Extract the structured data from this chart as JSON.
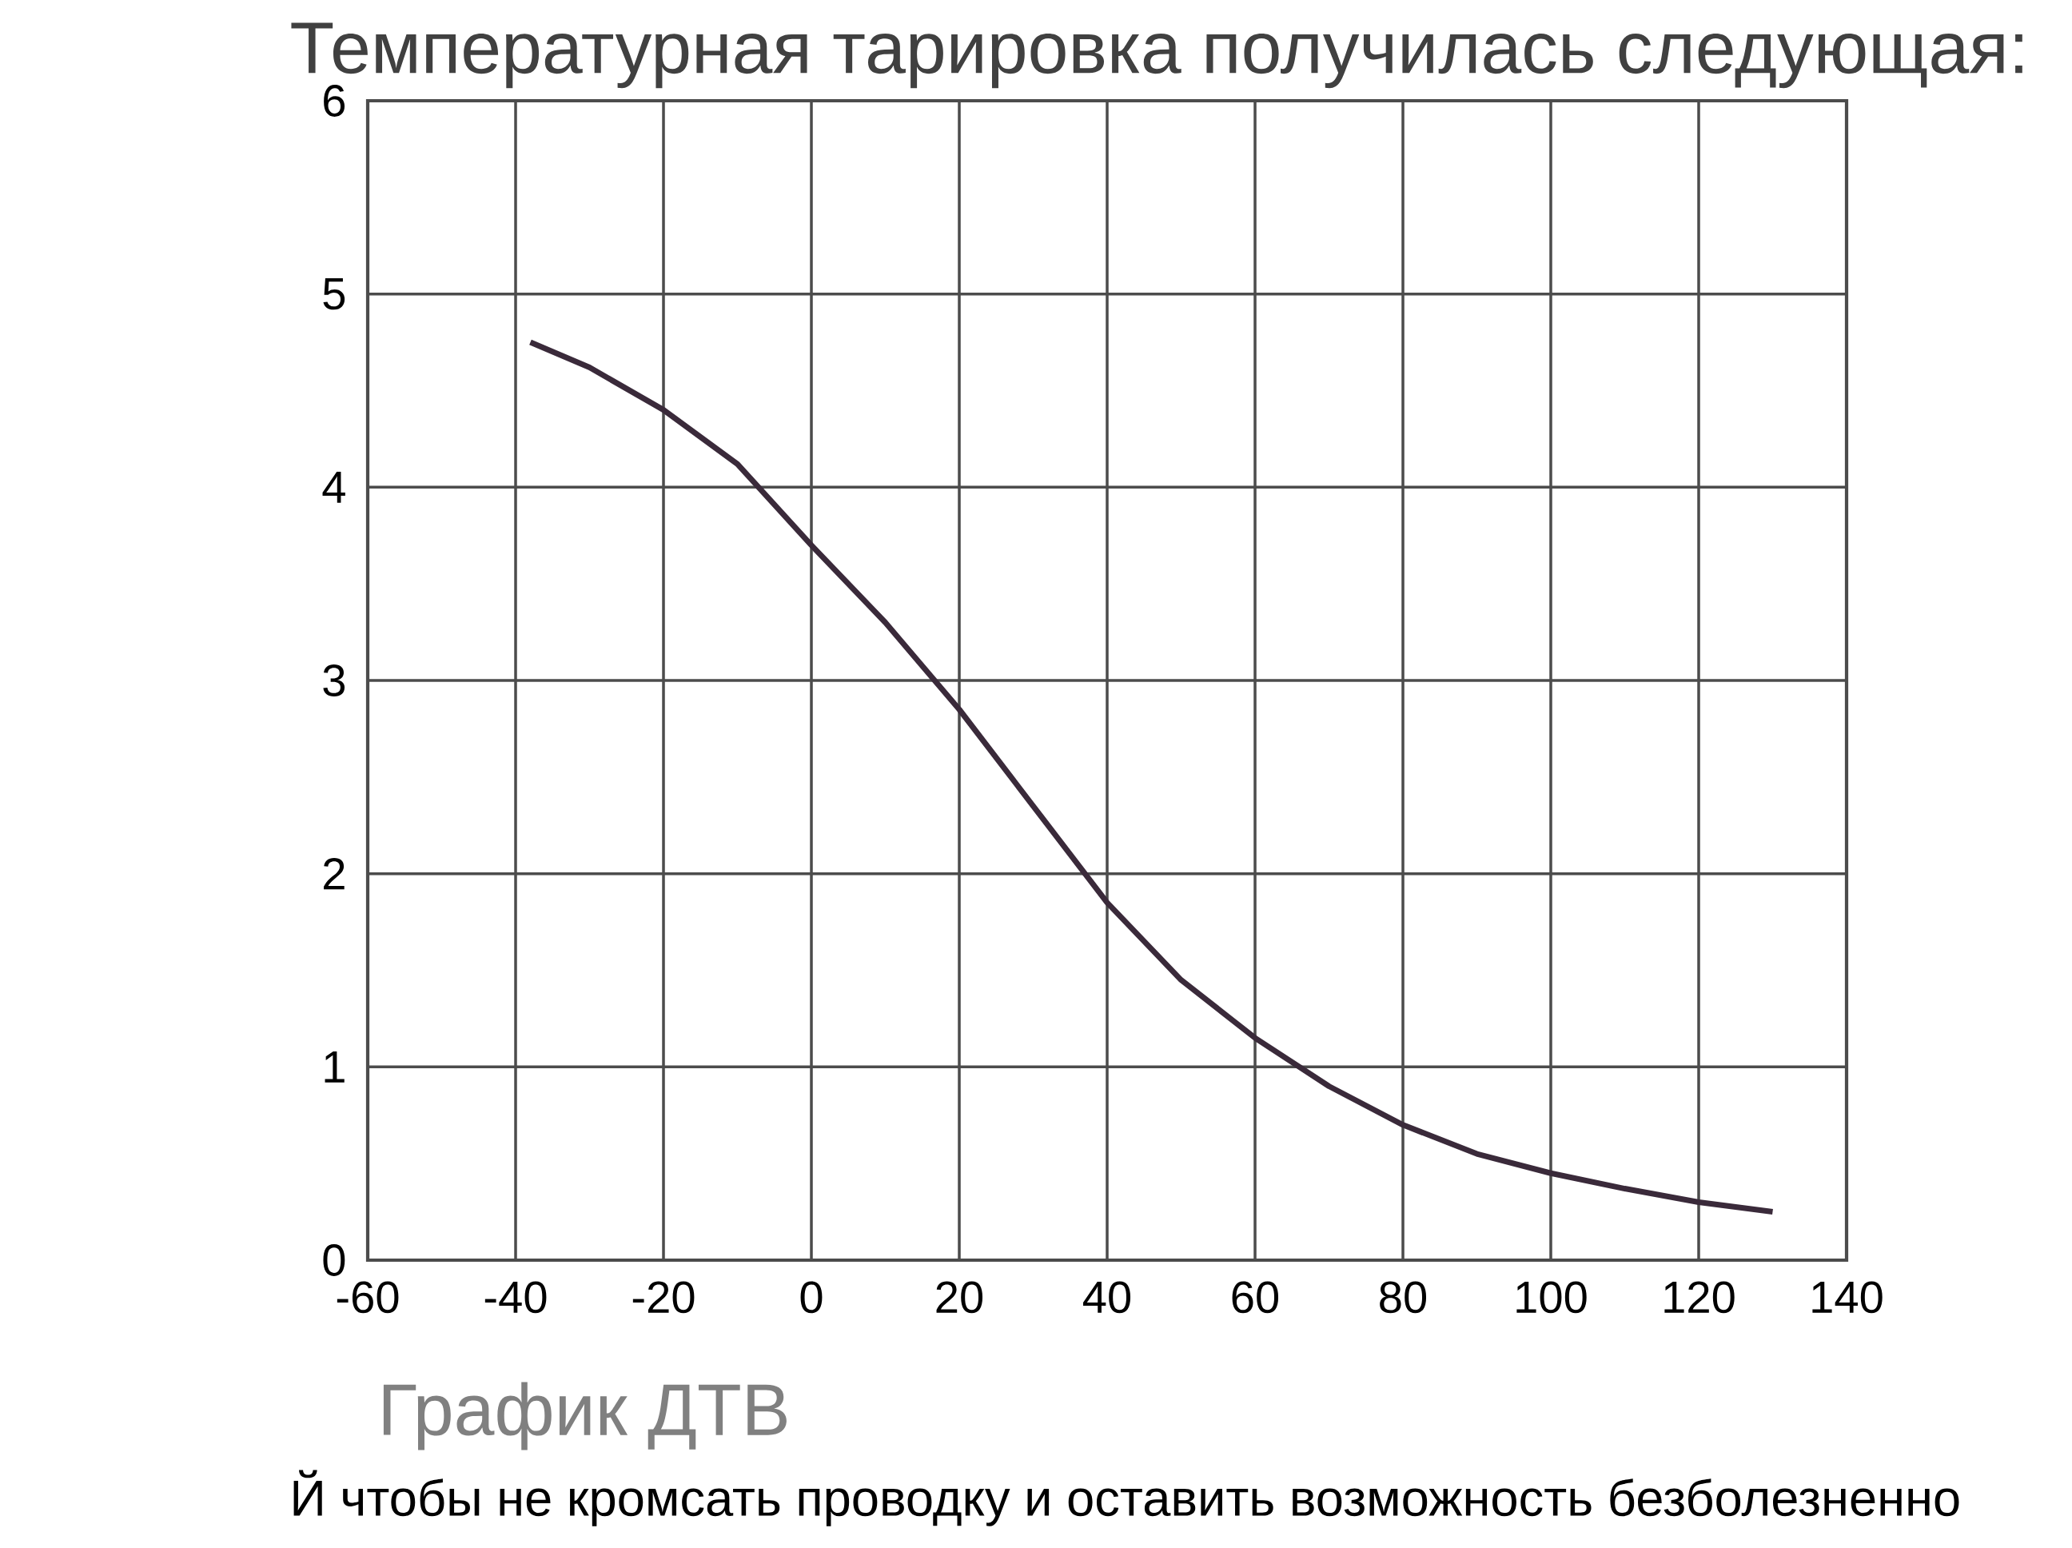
{
  "chart_data": {
    "type": "line",
    "title": "Температурная тарировка получилась следующая:",
    "annotations": [
      "График ДТВ",
      "Й чтобы не кромсать проводку и оставить возможность безболезненно"
    ],
    "x": [
      -38,
      -30,
      -20,
      -10,
      0,
      10,
      20,
      30,
      40,
      50,
      60,
      70,
      80,
      90,
      100,
      110,
      120,
      130
    ],
    "series": [
      {
        "color": "#3a2a3a",
        "values": [
          4.75,
          4.62,
          4.4,
          4.12,
          3.7,
          3.3,
          2.85,
          2.35,
          1.85,
          1.45,
          1.15,
          0.9,
          0.7,
          0.55,
          0.45,
          0.37,
          0.3,
          0.25
        ]
      }
    ],
    "xlim": [
      -60,
      140
    ],
    "xticks": [
      -60,
      -40,
      -20,
      0,
      20,
      40,
      60,
      80,
      100,
      120,
      140
    ],
    "ylim": [
      0,
      6
    ],
    "yticks": [
      0,
      1,
      2,
      3,
      4,
      5,
      6
    ],
    "grid": true,
    "marker": "none",
    "line_style": "solid"
  }
}
